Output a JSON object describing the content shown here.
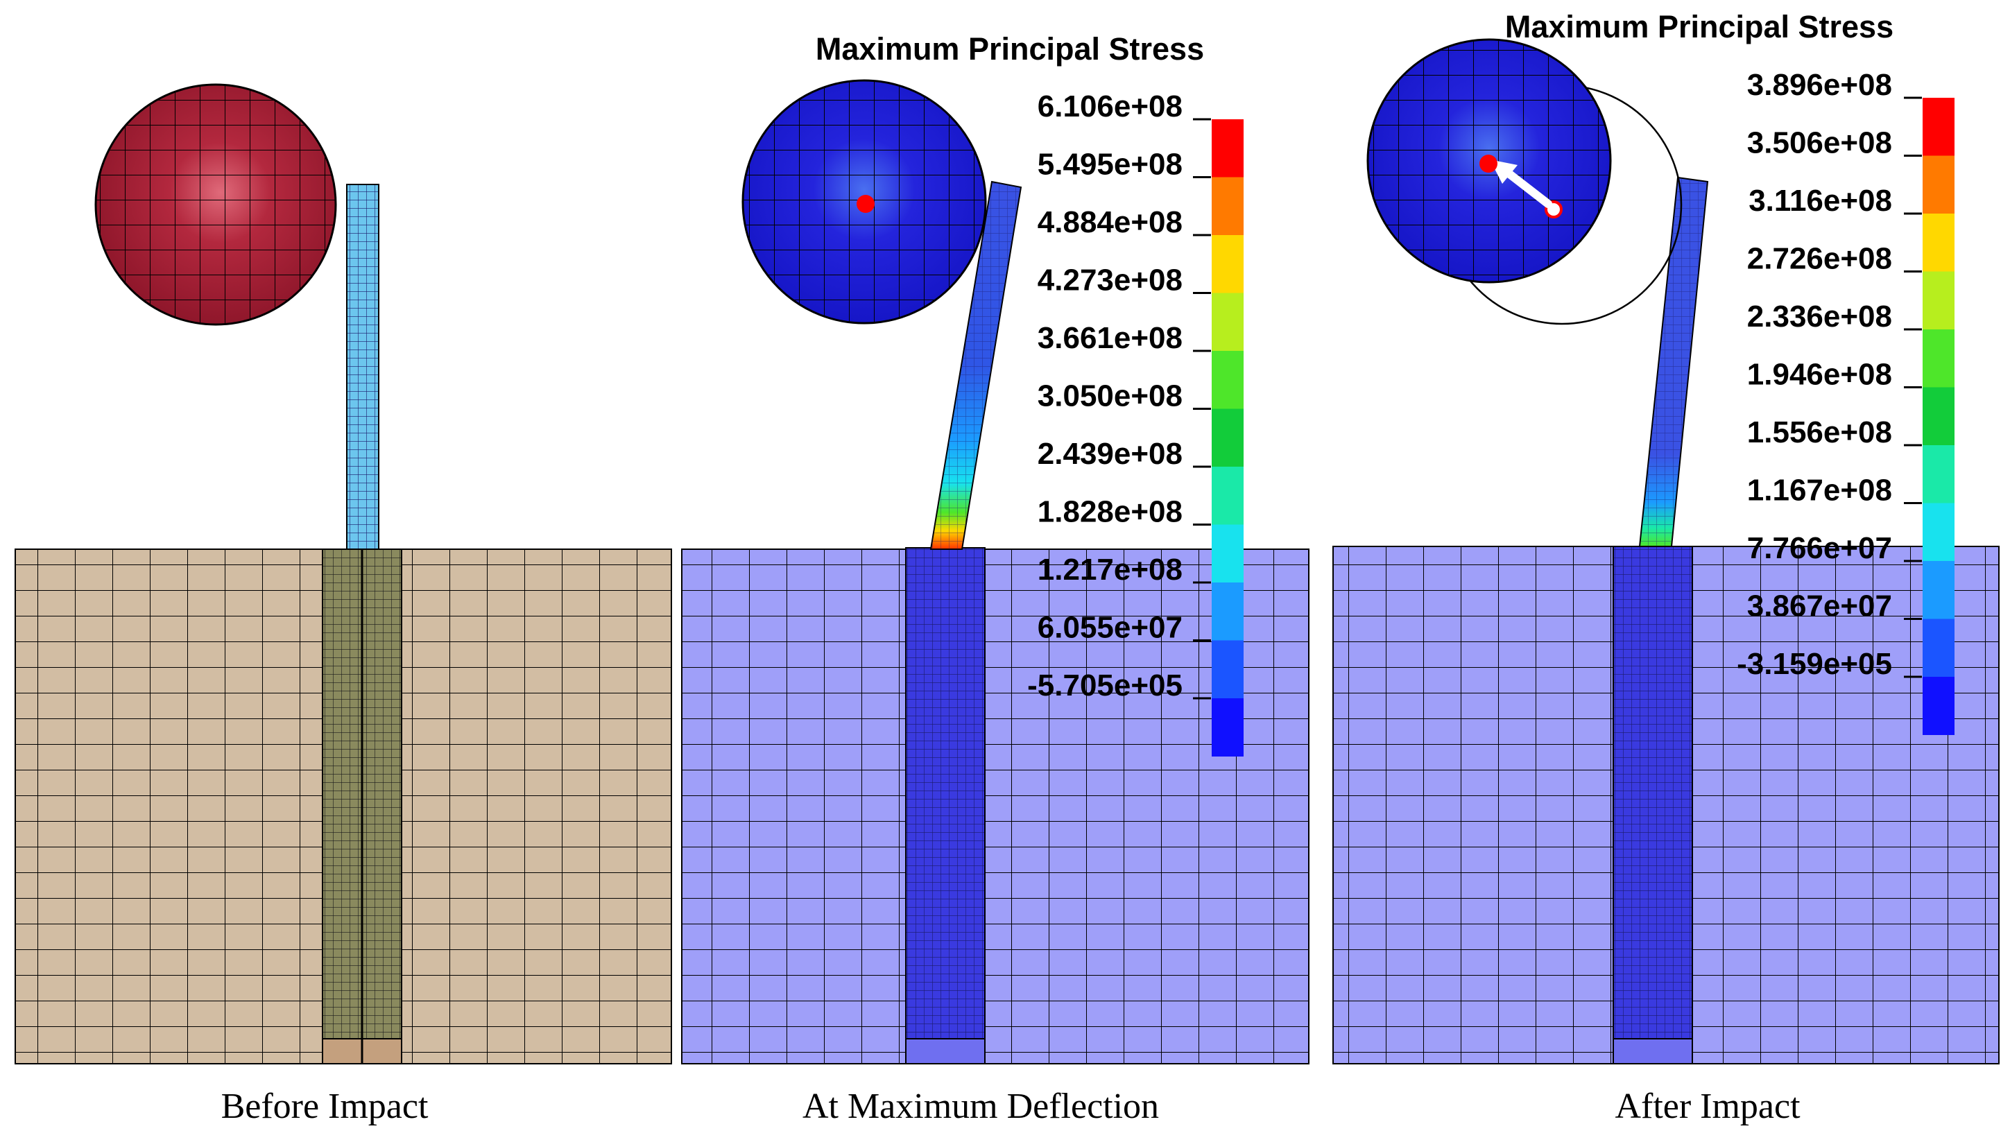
{
  "panels": [
    {
      "caption": "Before Impact",
      "colors": {
        "ground": "#d2bda3",
        "pile": "#8a8a5e",
        "pile_tip": "#c4a07e",
        "column": "#6cc6ee",
        "ball": "#9c1d33",
        "ball_highlight": "#e06a7a"
      }
    },
    {
      "caption": "At Maximum Deflection",
      "colors": {
        "ground": "#9f9ff9",
        "pile": "#3a3ae0",
        "column": "#3a52e4",
        "ball": "#1f1fd6",
        "ball_highlight": "#4a6ff0",
        "marker": "#ff0000"
      },
      "legend": {
        "title": "Maximum Principal Stress",
        "ticks": [
          "6.106e+08",
          "5.495e+08",
          "4.884e+08",
          "4.273e+08",
          "3.661e+08",
          "3.050e+08",
          "2.439e+08",
          "1.828e+08",
          "1.217e+08",
          "6.055e+07",
          "-5.705e+05"
        ]
      }
    },
    {
      "caption": "After Impact",
      "colors": {
        "ground": "#9f9ff9",
        "pile": "#3a3ae0",
        "column": "#3a52e4",
        "ball": "#1f1fd6",
        "ball_highlight": "#4a6ff0",
        "marker": "#ff0000",
        "arrow": "#ffffff"
      },
      "legend": {
        "title": "Maximum Principal Stress",
        "ticks": [
          "3.896e+08",
          "3.506e+08",
          "3.116e+08",
          "2.726e+08",
          "2.336e+08",
          "1.946e+08",
          "1.556e+08",
          "1.167e+08",
          "7.766e+07",
          "3.867e+07",
          "-3.159e+05"
        ]
      }
    }
  ],
  "colorbar": [
    "#ff0000",
    "#ff7a00",
    "#ffd800",
    "#b7ee1e",
    "#4ee62a",
    "#12cc3a",
    "#1ae9a8",
    "#18e2ee",
    "#1b9bff",
    "#1b55ff",
    "#1010ff"
  ]
}
